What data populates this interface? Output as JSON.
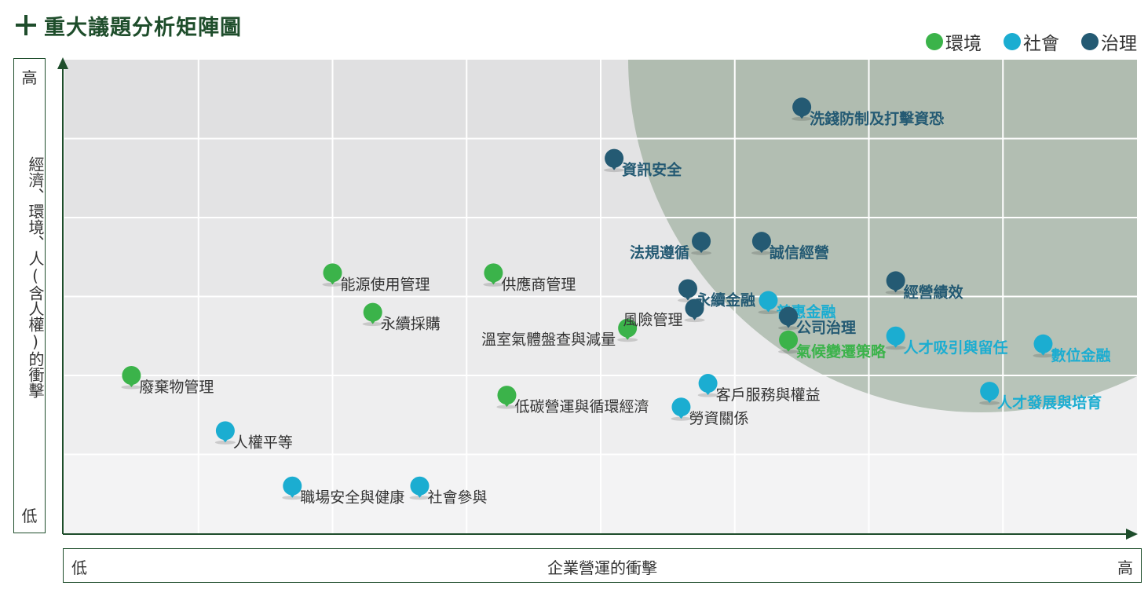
{
  "title": "重大議題分析矩陣圖",
  "legend": [
    {
      "label": "環境",
      "color": "#3bb34a"
    },
    {
      "label": "社會",
      "color": "#1badd1"
    },
    {
      "label": "治理",
      "color": "#245a73"
    }
  ],
  "y_axis": {
    "high": "高",
    "low": "低",
    "label": "經濟、環境、人(含人權)的衝擊"
  },
  "x_axis": {
    "high": "高",
    "low": "低",
    "label": "企業營運的衝擊"
  },
  "chart_data": {
    "type": "scatter",
    "xlabel": "企業營運的衝擊",
    "ylabel": "經濟、環境、人(含人權)的衝擊",
    "xlim": [
      0,
      8
    ],
    "ylim": [
      0,
      6
    ],
    "grid": true,
    "legend_position": "top-right",
    "series": [
      {
        "name": "環境",
        "color": "#3bb34a",
        "label_color": "#333333",
        "points": [
          {
            "label": "能源使用管理",
            "x": 2.0,
            "y": 3.3
          },
          {
            "label": "供應商管理",
            "x": 3.2,
            "y": 3.3
          },
          {
            "label": "永續採購",
            "x": 2.3,
            "y": 2.8
          },
          {
            "label": "溫室氣體盤查與減量",
            "x": 4.2,
            "y": 2.6
          },
          {
            "label": "廢棄物管理",
            "x": 0.5,
            "y": 2.0
          },
          {
            "label": "低碳營運與循環經濟",
            "x": 3.3,
            "y": 1.75
          },
          {
            "label": "氣候變遷策略",
            "x": 5.4,
            "y": 2.45,
            "label_color": "#3bb34a"
          }
        ]
      },
      {
        "name": "社會",
        "color": "#1badd1",
        "label_color": "#1badd1",
        "points": [
          {
            "label": "普惠金融",
            "x": 5.25,
            "y": 2.95
          },
          {
            "label": "人才吸引與留任",
            "x": 6.2,
            "y": 2.5
          },
          {
            "label": "數位金融",
            "x": 7.3,
            "y": 2.4
          },
          {
            "label": "人才發展與培育",
            "x": 6.9,
            "y": 1.8
          },
          {
            "label": "客戶服務與權益",
            "x": 4.8,
            "y": 1.9,
            "label_color": "#333333"
          },
          {
            "label": "勞資關係",
            "x": 4.6,
            "y": 1.6,
            "label_color": "#333333"
          },
          {
            "label": "人權平等",
            "x": 1.2,
            "y": 1.3,
            "label_color": "#333333"
          },
          {
            "label": "職場安全與健康",
            "x": 1.7,
            "y": 0.6,
            "label_color": "#333333"
          },
          {
            "label": "社會參與",
            "x": 2.65,
            "y": 0.6,
            "label_color": "#333333"
          }
        ]
      },
      {
        "name": "治理",
        "color": "#245a73",
        "label_color": "#245a73",
        "points": [
          {
            "label": "洗錢防制及打擊資恐",
            "x": 5.5,
            "y": 5.4
          },
          {
            "label": "資訊安全",
            "x": 4.1,
            "y": 4.75
          },
          {
            "label": "法規遵循",
            "x": 4.75,
            "y": 3.7
          },
          {
            "label": "誠信經營",
            "x": 5.2,
            "y": 3.7
          },
          {
            "label": "永續金融",
            "x": 4.65,
            "y": 3.1
          },
          {
            "label": "經營績效",
            "x": 6.2,
            "y": 3.2
          },
          {
            "label": "風險管理",
            "x": 4.7,
            "y": 2.85,
            "label_color": "#333333"
          },
          {
            "label": "公司治理",
            "x": 5.4,
            "y": 2.75
          }
        ]
      }
    ]
  }
}
